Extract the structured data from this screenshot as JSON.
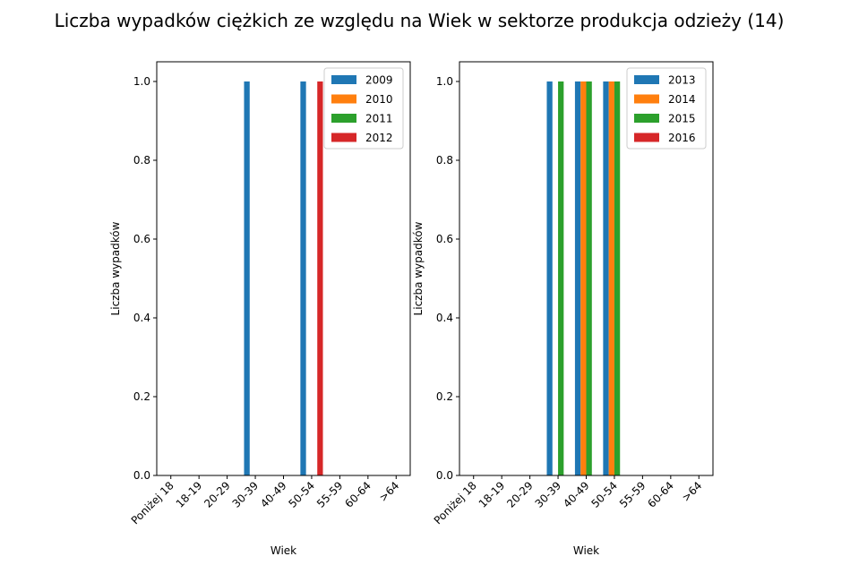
{
  "figure": {
    "title": "Liczba wypadków ciężkich ze względu na Wiek w sektorze produkcja odzieży  (14)"
  },
  "chart_data": [
    {
      "type": "bar",
      "categories": [
        "Poniżej 18",
        "18-19",
        "20-29",
        "30-39",
        "40-49",
        "50-54",
        "55-59",
        "60-64",
        ">64"
      ],
      "series": [
        {
          "name": "2009",
          "color": "#1f77b4",
          "values": [
            0,
            0,
            0,
            1,
            0,
            1,
            0,
            0,
            0
          ]
        },
        {
          "name": "2010",
          "color": "#ff7f0e",
          "values": [
            0,
            0,
            0,
            0,
            0,
            0,
            0,
            0,
            0
          ]
        },
        {
          "name": "2011",
          "color": "#2ca02c",
          "values": [
            0,
            0,
            0,
            0,
            0,
            0,
            0,
            0,
            0
          ]
        },
        {
          "name": "2012",
          "color": "#d62728",
          "values": [
            0,
            0,
            0,
            0,
            0,
            1,
            0,
            0,
            0
          ]
        }
      ],
      "xlabel": "Wiek",
      "ylabel": "Liczba wypadków",
      "ylim": [
        0,
        1.05
      ],
      "yticks": [
        "0.0",
        "0.2",
        "0.4",
        "0.6",
        "0.8",
        "1.0"
      ],
      "legend": "top-right",
      "grid": false
    },
    {
      "type": "bar",
      "categories": [
        "Poniżej 18",
        "18-19",
        "20-29",
        "30-39",
        "40-49",
        "50-54",
        "55-59",
        "60-64",
        ">64"
      ],
      "series": [
        {
          "name": "2013",
          "color": "#1f77b4",
          "values": [
            0,
            0,
            0,
            1,
            1,
            1,
            0,
            0,
            0
          ]
        },
        {
          "name": "2014",
          "color": "#ff7f0e",
          "values": [
            0,
            0,
            0,
            0,
            1,
            1,
            0,
            0,
            0
          ]
        },
        {
          "name": "2015",
          "color": "#2ca02c",
          "values": [
            0,
            0,
            0,
            1,
            1,
            1,
            0,
            0,
            0
          ]
        },
        {
          "name": "2016",
          "color": "#d62728",
          "values": [
            0,
            0,
            0,
            0,
            0,
            0,
            0,
            0,
            0
          ]
        }
      ],
      "xlabel": "Wiek",
      "ylabel": "Liczba wypadków",
      "ylim": [
        0,
        1.05
      ],
      "yticks": [
        "0.0",
        "0.2",
        "0.4",
        "0.6",
        "0.8",
        "1.0"
      ],
      "legend": "top-right",
      "grid": false
    }
  ]
}
